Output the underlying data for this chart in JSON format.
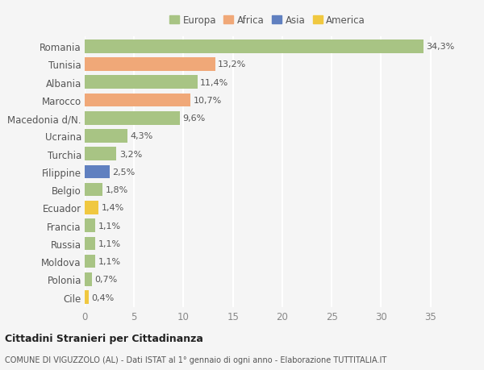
{
  "countries": [
    "Romania",
    "Tunisia",
    "Albania",
    "Marocco",
    "Macedonia d/N.",
    "Ucraina",
    "Turchia",
    "Filippine",
    "Belgio",
    "Ecuador",
    "Francia",
    "Russia",
    "Moldova",
    "Polonia",
    "Cile"
  ],
  "values": [
    34.3,
    13.2,
    11.4,
    10.7,
    9.6,
    4.3,
    3.2,
    2.5,
    1.8,
    1.4,
    1.1,
    1.1,
    1.1,
    0.7,
    0.4
  ],
  "labels": [
    "34,3%",
    "13,2%",
    "11,4%",
    "10,7%",
    "9,6%",
    "4,3%",
    "3,2%",
    "2,5%",
    "1,8%",
    "1,4%",
    "1,1%",
    "1,1%",
    "1,1%",
    "0,7%",
    "0,4%"
  ],
  "colors": [
    "#a8c484",
    "#f0a878",
    "#a8c484",
    "#f0a878",
    "#a8c484",
    "#a8c484",
    "#a8c484",
    "#6080c0",
    "#a8c484",
    "#f0c840",
    "#a8c484",
    "#a8c484",
    "#a8c484",
    "#a8c484",
    "#f0c840"
  ],
  "legend_labels": [
    "Europa",
    "Africa",
    "Asia",
    "America"
  ],
  "legend_colors": [
    "#a8c484",
    "#f0a878",
    "#6080c0",
    "#f0c840"
  ],
  "title": "Cittadini Stranieri per Cittadinanza",
  "subtitle": "COMUNE DI VIGUZZOLO (AL) - Dati ISTAT al 1° gennaio di ogni anno - Elaborazione TUTTITALIA.IT",
  "xlim": [
    0,
    37
  ],
  "xticks": [
    0,
    5,
    10,
    15,
    20,
    25,
    30,
    35
  ],
  "bg_color": "#f5f5f5",
  "bar_height": 0.75,
  "grid_color": "#ffffff",
  "label_fontsize": 8,
  "tick_fontsize": 8.5
}
